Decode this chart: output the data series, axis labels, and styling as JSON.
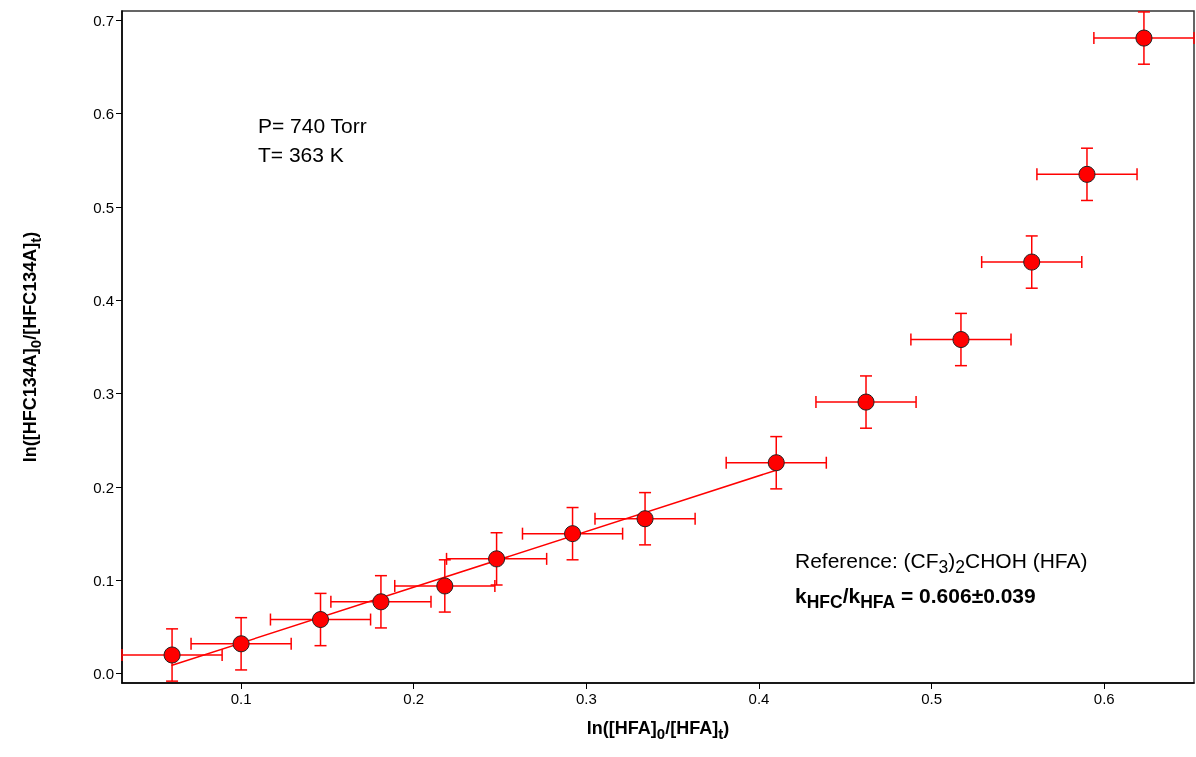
{
  "chart_data": {
    "type": "scatter",
    "xlabel": "ln([HFA]$_{0}$/[HFA]$_{t}$)",
    "ylabel": "ln([HFC134A]$_{0}$/[HFC134A]$_{t}$)",
    "annotations": [
      "P= 740 Torr",
      "T= 363 K",
      "Reference: (CF$_{3}$)$_{2}$CHOH (HFA)",
      "k$_{HFC}$/k$_{HFA}$ = 0.606±0.039"
    ],
    "xlim": [
      0.031,
      0.652
    ],
    "xticks": [
      0.1,
      0.2,
      0.3,
      0.4,
      0.5,
      0.6
    ],
    "ylim": [
      -0.01,
      0.71
    ],
    "yticks": [
      {
        "value": 0,
        "label": "0.0"
      },
      0.1,
      0.2,
      0.3,
      0.4,
      0.5,
      0.6,
      0.7
    ],
    "grid": false,
    "series": [
      {
        "marker": "circle",
        "color": "#ff0000",
        "x": [
          0.06,
          0.1,
          0.146,
          0.181,
          0.218,
          0.248,
          0.292,
          0.334,
          0.41,
          0.462,
          0.517,
          0.558,
          0.59,
          0.623
        ],
        "values": [
          0.02,
          0.032,
          0.058,
          0.077,
          0.094,
          0.123,
          0.15,
          0.166,
          0.226,
          0.291,
          0.358,
          0.441,
          0.535,
          0.681
        ],
        "errors": [
          0.028,
          0.028,
          0.028,
          0.028,
          0.028,
          0.028,
          0.028,
          0.028,
          0.028,
          0.028,
          0.028,
          0.028,
          0.028,
          0.028
        ],
        "xerrors": [
          0.029,
          0.029,
          0.029,
          0.029,
          0.029,
          0.029,
          0.029,
          0.029,
          0.029,
          0.029,
          0.029,
          0.029,
          0.029,
          0.029
        ]
      },
      {
        "type": "line",
        "color": "#ff0000",
        "line_style": "solid",
        "x": [
          0.06,
          0.41
        ],
        "values": [
          0.009,
          0.218
        ]
      }
    ]
  }
}
